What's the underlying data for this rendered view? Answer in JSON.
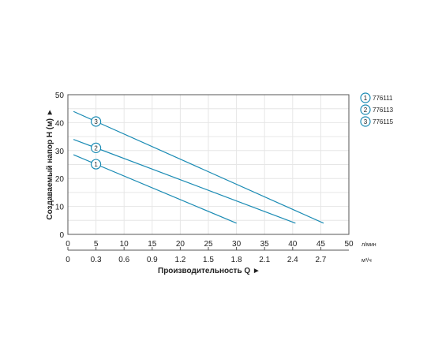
{
  "chart_data": {
    "type": "line",
    "ylabel": "Создаваемый напор Н (м) ►",
    "xlabel": "Производительность Q ►",
    "x_unit": "л/мин",
    "x2_unit": "м³/ч",
    "xlim": [
      0,
      50
    ],
    "ylim": [
      0,
      50
    ],
    "x_ticks": [
      "0",
      "5",
      "10",
      "15",
      "20",
      "25",
      "30",
      "35",
      "40",
      "45",
      "50"
    ],
    "x2_ticks": [
      "0",
      "0.3",
      "0.6",
      "0.9",
      "1.2",
      "1.5",
      "1.8",
      "2.1",
      "2.4",
      "2.7"
    ],
    "y_ticks": [
      "0",
      "10",
      "20",
      "30",
      "40",
      "50"
    ],
    "grid": true,
    "legend_position": "right",
    "line_color": "#1a8bb4",
    "series": [
      {
        "name": "776111",
        "marker": "1",
        "x": [
          1,
          30
        ],
        "y": [
          28.5,
          4
        ]
      },
      {
        "name": "776113",
        "marker": "2",
        "x": [
          1,
          40.5
        ],
        "y": [
          34,
          4
        ]
      },
      {
        "name": "776115",
        "marker": "3",
        "x": [
          1,
          45.5
        ],
        "y": [
          44,
          4
        ]
      }
    ]
  }
}
